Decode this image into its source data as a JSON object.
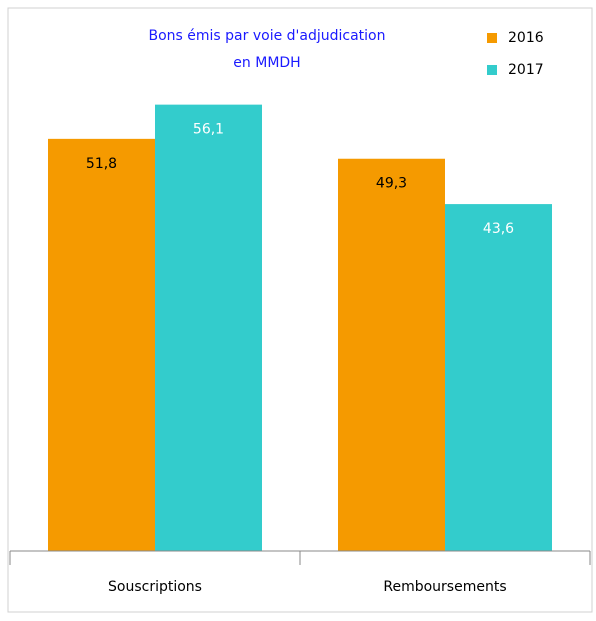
{
  "chart_data": {
    "type": "bar",
    "title": [
      "Bons émis par voie d'adjudication",
      "en MMDH"
    ],
    "categories": [
      "Souscriptions",
      "Remboursements"
    ],
    "series": [
      {
        "name": "2016",
        "color": "#f59a00",
        "values": [
          51.8,
          49.3
        ],
        "value_labels": [
          "51,8",
          "49,3"
        ]
      },
      {
        "name": "2017",
        "color": "#33cccc",
        "values": [
          56.1,
          43.6
        ],
        "value_labels": [
          "56,1",
          "43,6"
        ]
      }
    ],
    "ylim": [
      0,
      69
    ],
    "legend": "top-right"
  }
}
